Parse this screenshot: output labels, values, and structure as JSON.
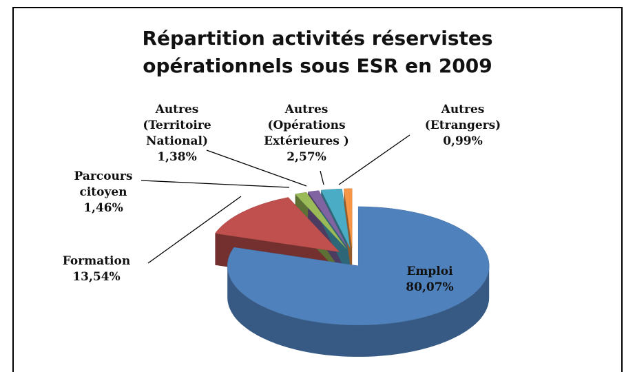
{
  "chart_data": {
    "type": "pie3d",
    "title": "Répartition activités réservistes opérationnels sous ESR en 2009",
    "categories": [
      "Emploi",
      "Formation",
      "Parcours citoyen",
      "Autres (Territoire National)",
      "Autres (Opérations Extérieures )",
      "Autres (Etrangers)"
    ],
    "values": [
      80.07,
      13.54,
      1.46,
      1.38,
      2.57,
      0.99
    ],
    "value_labels": [
      "80,07%",
      "13,54%",
      "1,46%",
      "1,38%",
      "2,57%",
      "0,99%"
    ],
    "colors": [
      "#4f81bd",
      "#c0504d",
      "#9bbb59",
      "#8064a2",
      "#4bacc6",
      "#f79646"
    ]
  }
}
